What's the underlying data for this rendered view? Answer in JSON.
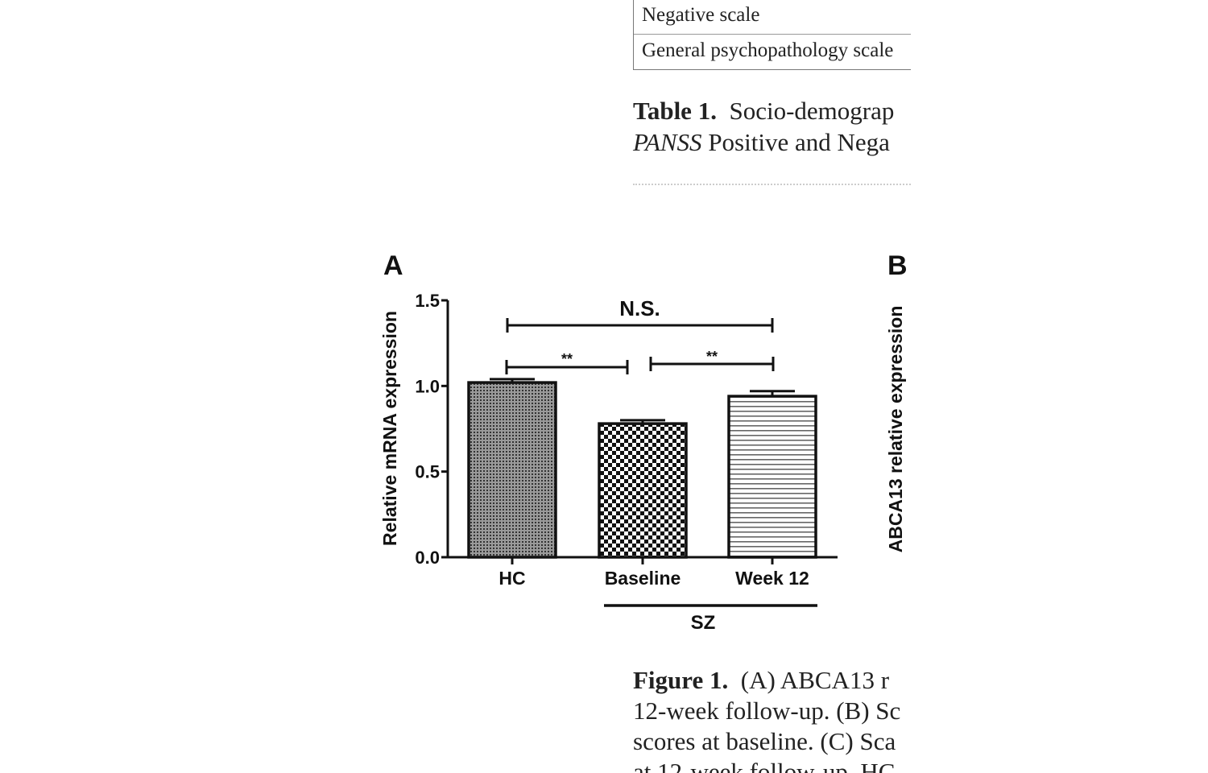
{
  "table_fragment": {
    "rows": [
      "Negative scale",
      "General psychopathology scale"
    ],
    "caption_label": "Table 1.",
    "caption_line1": "Socio-demograp",
    "caption_line2_italic": "PANSS",
    "caption_line2": "Positive and Nega"
  },
  "figure_caption": {
    "label": "Figure 1.",
    "line1": "(A) ABCA13 r",
    "line2": "12-week follow-up. (B) Sc",
    "line3": "scores at baseline. (C) Sca",
    "line4": "at 12-week follow-up. HC"
  },
  "chart_data": {
    "type": "bar",
    "panel_label": "A",
    "categories": [
      "HC",
      "Baseline",
      "Week 12"
    ],
    "values": [
      1.02,
      0.78,
      0.94
    ],
    "error": [
      0.02,
      0.02,
      0.03
    ],
    "patterns": [
      "fine-dots",
      "checkerboard",
      "horizontal-lines"
    ],
    "ylabel": "Relative mRNA expression",
    "xlabel": "",
    "ylim": [
      0,
      1.5
    ],
    "yticks": [
      "0.0",
      "0.5",
      "1.0",
      "1.5"
    ],
    "group_label": "SZ",
    "group_members": [
      "Baseline",
      "Week 12"
    ],
    "significance": [
      {
        "from": "HC",
        "to": "Week 12",
        "label": "N.S."
      },
      {
        "from": "HC",
        "to": "Baseline",
        "label": "**"
      },
      {
        "from": "Baseline",
        "to": "Week 12",
        "label": "**"
      }
    ],
    "grid": false
  },
  "panel_b_fragment": {
    "panel_label": "B",
    "ylabel": "ABCA13 relative expression"
  }
}
